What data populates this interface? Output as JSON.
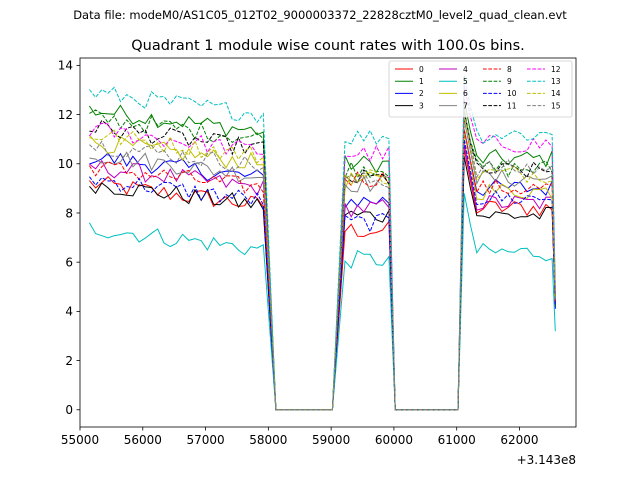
{
  "chart_data": {
    "type": "line",
    "suptitle": "Data file: modeM0/AS1C05_012T02_9000003372_22828cztM0_level2_quad_clean.evt",
    "title": "Quadrant 1 module wise count rates with 100.0s bins.",
    "xlabel": "",
    "ylabel": "",
    "x_offset_text": "+3.143e8",
    "xlim": [
      55000,
      62900
    ],
    "ylim": [
      -0.7,
      14.3
    ],
    "x_ticks": [
      55000,
      56000,
      57000,
      58000,
      59000,
      60000,
      61000,
      62000
    ],
    "x_tick_labels": [
      "55000",
      "56000",
      "57000",
      "58000",
      "59000",
      "60000",
      "61000",
      "62000"
    ],
    "y_ticks": [
      0,
      2,
      4,
      6,
      8,
      10,
      12,
      14
    ],
    "y_tick_labels": [
      "0",
      "2",
      "4",
      "6",
      "8",
      "10",
      "12",
      "14"
    ],
    "legend_position": "top-right",
    "gaps": [
      {
        "down_start": 57920,
        "zero_from": 58120,
        "zero_to": 59020,
        "up_end": 59220
      },
      {
        "down_start": 59920,
        "zero_from": 60020,
        "zero_to": 61020,
        "up_end": 61120
      }
    ],
    "x_segments": [
      {
        "start": 55150,
        "end": 57920,
        "n": 29
      },
      {
        "start": 59220,
        "end": 59920,
        "n": 8
      },
      {
        "start": 61120,
        "end": 62520,
        "n": 15
      }
    ],
    "end_point_x": 62570,
    "series": [
      {
        "name": "0",
        "color": "#ff0000",
        "dash": false,
        "levels": [
          8.3,
          7.3,
          8.2
        ],
        "end": 4.3
      },
      {
        "name": "1",
        "color": "#008000",
        "dash": false,
        "levels": [
          11.3,
          10.0,
          10.2
        ],
        "end": 4.7
      },
      {
        "name": "2",
        "color": "#0000ff",
        "dash": false,
        "levels": [
          9.4,
          8.5,
          9.0
        ],
        "end": 4.4
      },
      {
        "name": "3",
        "color": "#000000",
        "dash": false,
        "levels": [
          8.3,
          7.9,
          7.9
        ],
        "end": 4.2
      },
      {
        "name": "4",
        "color": "#bf00bf",
        "dash": false,
        "levels": [
          9.0,
          8.2,
          8.4
        ],
        "end": 4.3
      },
      {
        "name": "5",
        "color": "#00bfbf",
        "dash": false,
        "levels": [
          6.5,
          6.1,
          6.4
        ],
        "end": 3.2
      },
      {
        "name": "6",
        "color": "#bfbf00",
        "dash": false,
        "levels": [
          10.0,
          9.3,
          8.9
        ],
        "end": 4.5
      },
      {
        "name": "7",
        "color": "#808080",
        "dash": false,
        "levels": [
          9.5,
          9.2,
          9.4
        ],
        "end": 4.5
      },
      {
        "name": "8",
        "color": "#ff0000",
        "dash": true,
        "levels": [
          9.0,
          9.4,
          9.0
        ],
        "end": 4.4
      },
      {
        "name": "9",
        "color": "#008000",
        "dash": true,
        "levels": [
          11.0,
          9.8,
          9.8
        ],
        "end": 4.6
      },
      {
        "name": "10",
        "color": "#0000ff",
        "dash": true,
        "levels": [
          8.5,
          7.6,
          8.6
        ],
        "end": 4.1
      },
      {
        "name": "11",
        "color": "#000000",
        "dash": true,
        "levels": [
          10.6,
          9.4,
          9.7
        ],
        "end": 4.5
      },
      {
        "name": "12",
        "color": "#ff00ff",
        "dash": true,
        "levels": [
          10.5,
          10.4,
          10.8
        ],
        "end": 4.8
      },
      {
        "name": "13",
        "color": "#00bfbf",
        "dash": true,
        "levels": [
          12.0,
          11.1,
          11.2
        ],
        "end": 5.0
      },
      {
        "name": "14",
        "color": "#bfbf00",
        "dash": true,
        "levels": [
          10.3,
          9.5,
          9.6
        ],
        "end": 4.5
      },
      {
        "name": "15",
        "color": "#808080",
        "dash": true,
        "levels": [
          9.9,
          9.3,
          9.8
        ],
        "end": 4.5
      }
    ]
  }
}
